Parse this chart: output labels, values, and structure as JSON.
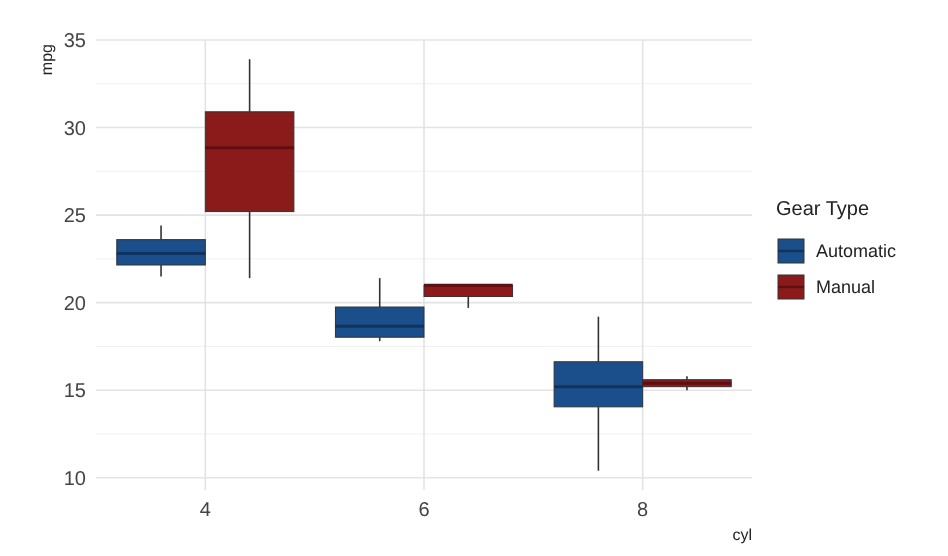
{
  "chart_data": {
    "type": "box",
    "xlabel": "cyl",
    "ylabel": "mpg",
    "legend_title": "Gear Type",
    "categories": [
      "4",
      "6",
      "8"
    ],
    "ylim": [
      9.3,
      35
    ],
    "yticks": [
      10,
      15,
      20,
      25,
      30,
      35
    ],
    "grid": true,
    "legend": "right",
    "series": [
      {
        "name": "Automatic",
        "color": "#1a4f8b",
        "boxes": [
          {
            "low": 21.5,
            "q1": 22.15,
            "median": 22.8,
            "q3": 23.6,
            "high": 24.4
          },
          {
            "low": 17.8,
            "q1": 18.025,
            "median": 18.65,
            "q3": 19.75,
            "high": 21.4
          },
          {
            "low": 10.4,
            "q1": 14.05,
            "median": 15.2,
            "q3": 16.625,
            "high": 19.2
          }
        ]
      },
      {
        "name": "Manual",
        "color": "#8b1a1a",
        "boxes": [
          {
            "low": 21.4,
            "q1": 25.2,
            "median": 28.85,
            "q3": 30.9,
            "high": 33.9
          },
          {
            "low": 19.7,
            "q1": 20.35,
            "median": 21,
            "q3": 21,
            "high": 21
          },
          {
            "low": 15,
            "q1": 15.2,
            "median": 15.4,
            "q3": 15.6,
            "high": 15.8
          }
        ]
      }
    ]
  }
}
